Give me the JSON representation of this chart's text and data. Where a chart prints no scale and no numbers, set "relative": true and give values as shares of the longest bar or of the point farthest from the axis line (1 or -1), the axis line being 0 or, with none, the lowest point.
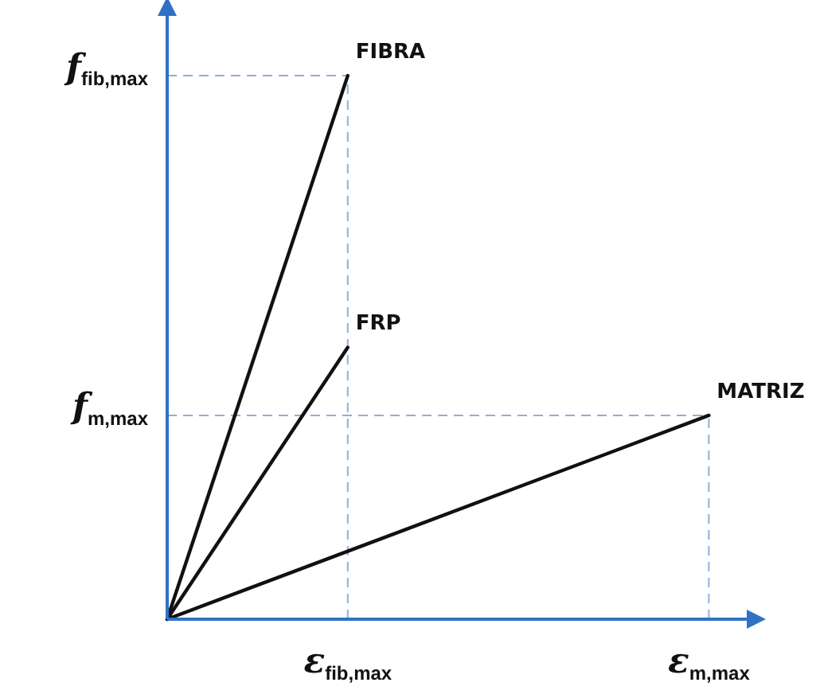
{
  "chart_data": {
    "type": "line",
    "relative": true,
    "categories": [
      null,
      "ε$_{fib,max}$",
      null,
      "ε$_{m,max}$"
    ],
    "series": [
      {
        "name": "FIBRA",
        "color": "#111111",
        "values": [
          0,
          1,
          null,
          null
        ]
      },
      {
        "name": "FRP",
        "color": "#111111",
        "values": [
          0,
          0.5,
          null,
          null
        ]
      },
      {
        "name": "MATRIZ",
        "color": "#111111",
        "values": [
          0,
          0.125,
          0.25,
          0.375
        ]
      }
    ],
    "ref_lines": [
      {
        "axis": "x",
        "value": "ε$_{fib,max}$",
        "color": "#8fb0d8",
        "line_style": "dashed"
      },
      {
        "axis": "x",
        "value": "ε$_{m,max}$",
        "color": "#8fb0d8",
        "line_style": "dashed"
      },
      {
        "axis": "y",
        "value": 1,
        "label": "f$_{fib,max}$",
        "color": "#8fb0d8",
        "line_style": "dashed"
      },
      {
        "axis": "y",
        "value": 0.375,
        "label": "f$_{m,max}$",
        "color": "#8fb0d8",
        "line_style": "dashed"
      }
    ],
    "marker": "none",
    "line_style": "solid",
    "legend": false
  }
}
